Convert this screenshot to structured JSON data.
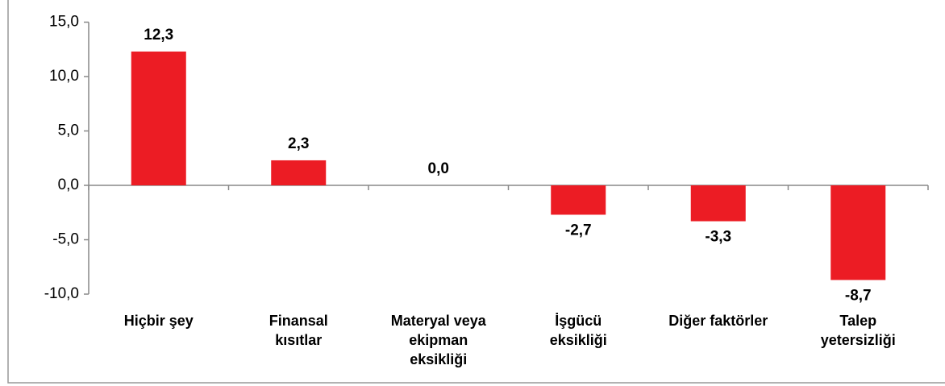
{
  "chart_data": {
    "type": "bar",
    "categories": [
      "Hiçbir şey",
      "Finansal\nkısıtlar",
      "Materyal veya\nekipman\neksikliği",
      "İşgücü\neksikliği",
      "Diğer faktörler",
      "Talep\nyetersizliği"
    ],
    "values": [
      12.3,
      2.3,
      0.0,
      -2.7,
      -3.3,
      -8.7
    ],
    "value_labels": [
      "12,3",
      "2,3",
      "0,0",
      "-2,7",
      "-3,3",
      "-8,7"
    ],
    "color": "#ec1c24",
    "ylim": [
      -10,
      15
    ],
    "yticks": [
      {
        "value": -10,
        "label": "-10,0"
      },
      {
        "value": -5,
        "label": "-5,0"
      },
      {
        "value": 0,
        "label": "0,0"
      },
      {
        "value": 5,
        "label": "5,0"
      },
      {
        "value": 10,
        "label": "10,0"
      },
      {
        "value": 15,
        "label": "15,0"
      }
    ]
  }
}
